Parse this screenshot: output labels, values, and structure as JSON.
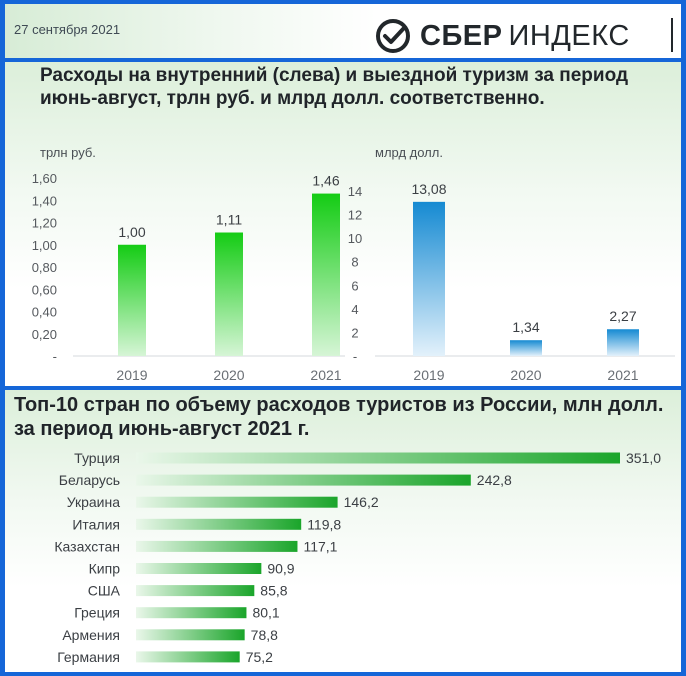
{
  "header": {
    "date": "27 сентября 2021",
    "logo_word1": "СБЕР",
    "logo_word2": "ИНДЕКС",
    "brand_color": "#1a9f29"
  },
  "top_panel": {
    "title": "Расходы на внутренний (слева) и выездной туризм за период июнь-август, трлн руб. и млрд долл. соответственно."
  },
  "bottom_panel": {
    "title": "Топ-10 стран по объему расходов туристов из России, млн долл. за период июнь-август 2021 г."
  },
  "chart_data": [
    {
      "type": "bar",
      "ylabel": "трлн руб.",
      "categories": [
        "2019",
        "2020",
        "2021"
      ],
      "values": [
        1.0,
        1.11,
        1.46
      ],
      "value_labels": [
        "1,00",
        "1,11",
        "1,46"
      ],
      "ylim": [
        0,
        1.6
      ],
      "y_ticks": [
        {
          "v": 0,
          "label": "-"
        },
        {
          "v": 0.2,
          "label": "0,20"
        },
        {
          "v": 0.4,
          "label": "0,40"
        },
        {
          "v": 0.6,
          "label": "0,60"
        },
        {
          "v": 0.8,
          "label": "0,80"
        },
        {
          "v": 1.0,
          "label": "1,00"
        },
        {
          "v": 1.2,
          "label": "1,20"
        },
        {
          "v": 1.4,
          "label": "1,40"
        },
        {
          "v": 1.6,
          "label": "1,60"
        }
      ],
      "color": "#1ed21e"
    },
    {
      "type": "bar",
      "ylabel": "млрд долл.",
      "categories": [
        "2019",
        "2020",
        "2021"
      ],
      "values": [
        13.08,
        1.34,
        2.27
      ],
      "value_labels": [
        "13,08",
        "1,34",
        "2,27"
      ],
      "ylim": [
        0,
        14
      ],
      "y_ticks": [
        {
          "v": 0,
          "label": "-"
        },
        {
          "v": 2,
          "label": "2"
        },
        {
          "v": 4,
          "label": "4"
        },
        {
          "v": 6,
          "label": "6"
        },
        {
          "v": 8,
          "label": "8"
        },
        {
          "v": 10,
          "label": "10"
        },
        {
          "v": 12,
          "label": "12"
        },
        {
          "v": 14,
          "label": "14"
        }
      ],
      "color": "#1d8fd6"
    },
    {
      "type": "bar",
      "orientation": "horizontal",
      "categories": [
        "Турция",
        "Беларусь",
        "Украина",
        "Италия",
        "Казахстан",
        "Кипр",
        "США",
        "Греция",
        "Армения",
        "Германия"
      ],
      "values": [
        351.0,
        242.8,
        146.2,
        119.8,
        117.1,
        90.9,
        85.8,
        80.1,
        78.8,
        75.2
      ],
      "value_labels": [
        "351,0",
        "242,8",
        "146,2",
        "119,8",
        "117,1",
        "90,9",
        "85,8",
        "80,1",
        "78,8",
        "75,2"
      ],
      "color": "#1aa52a"
    }
  ]
}
